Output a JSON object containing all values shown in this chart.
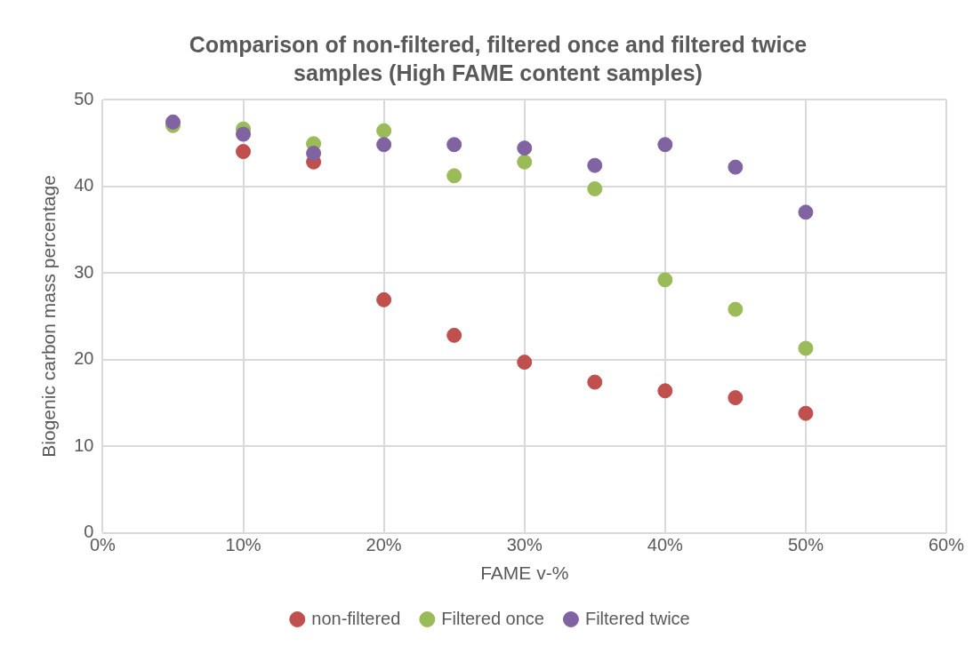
{
  "chart_data": {
    "type": "scatter",
    "title": "Comparison of non-filtered, filtered once and filtered twice samples (High FAME content samples)",
    "xlabel": "FAME v-%",
    "ylabel": "Biogenic carbon mass percentage",
    "x": [
      5,
      10,
      15,
      20,
      25,
      30,
      35,
      40,
      45,
      50
    ],
    "series": [
      {
        "name": "non-filtered",
        "color": "#c0504d",
        "values": [
          null,
          44,
          42.8,
          26.9,
          22.8,
          19.7,
          17.4,
          16.4,
          15.6,
          13.8
        ]
      },
      {
        "name": "Filtered once",
        "color": "#9bbb59",
        "values": [
          47,
          46.6,
          44.9,
          46.4,
          41.2,
          42.8,
          39.7,
          29.2,
          25.8,
          21.3
        ]
      },
      {
        "name": "Filtered twice",
        "color": "#8064a2",
        "values": [
          47.4,
          46,
          43.8,
          44.8,
          44.8,
          44.4,
          42.4,
          44.8,
          42.2,
          37
        ]
      }
    ],
    "xlim": [
      0,
      60
    ],
    "xticks": [
      {
        "value": 0,
        "label": "0%"
      },
      {
        "value": 10,
        "label": "10%"
      },
      {
        "value": 20,
        "label": "20%"
      },
      {
        "value": 30,
        "label": "30%"
      },
      {
        "value": 40,
        "label": "40%"
      },
      {
        "value": 50,
        "label": "50%"
      },
      {
        "value": 60,
        "label": "60%"
      }
    ],
    "ylim": [
      0,
      50
    ],
    "yticks": [
      0,
      10,
      20,
      30,
      40,
      50
    ],
    "grid": true,
    "legend": "bottom",
    "marker": "circle"
  }
}
